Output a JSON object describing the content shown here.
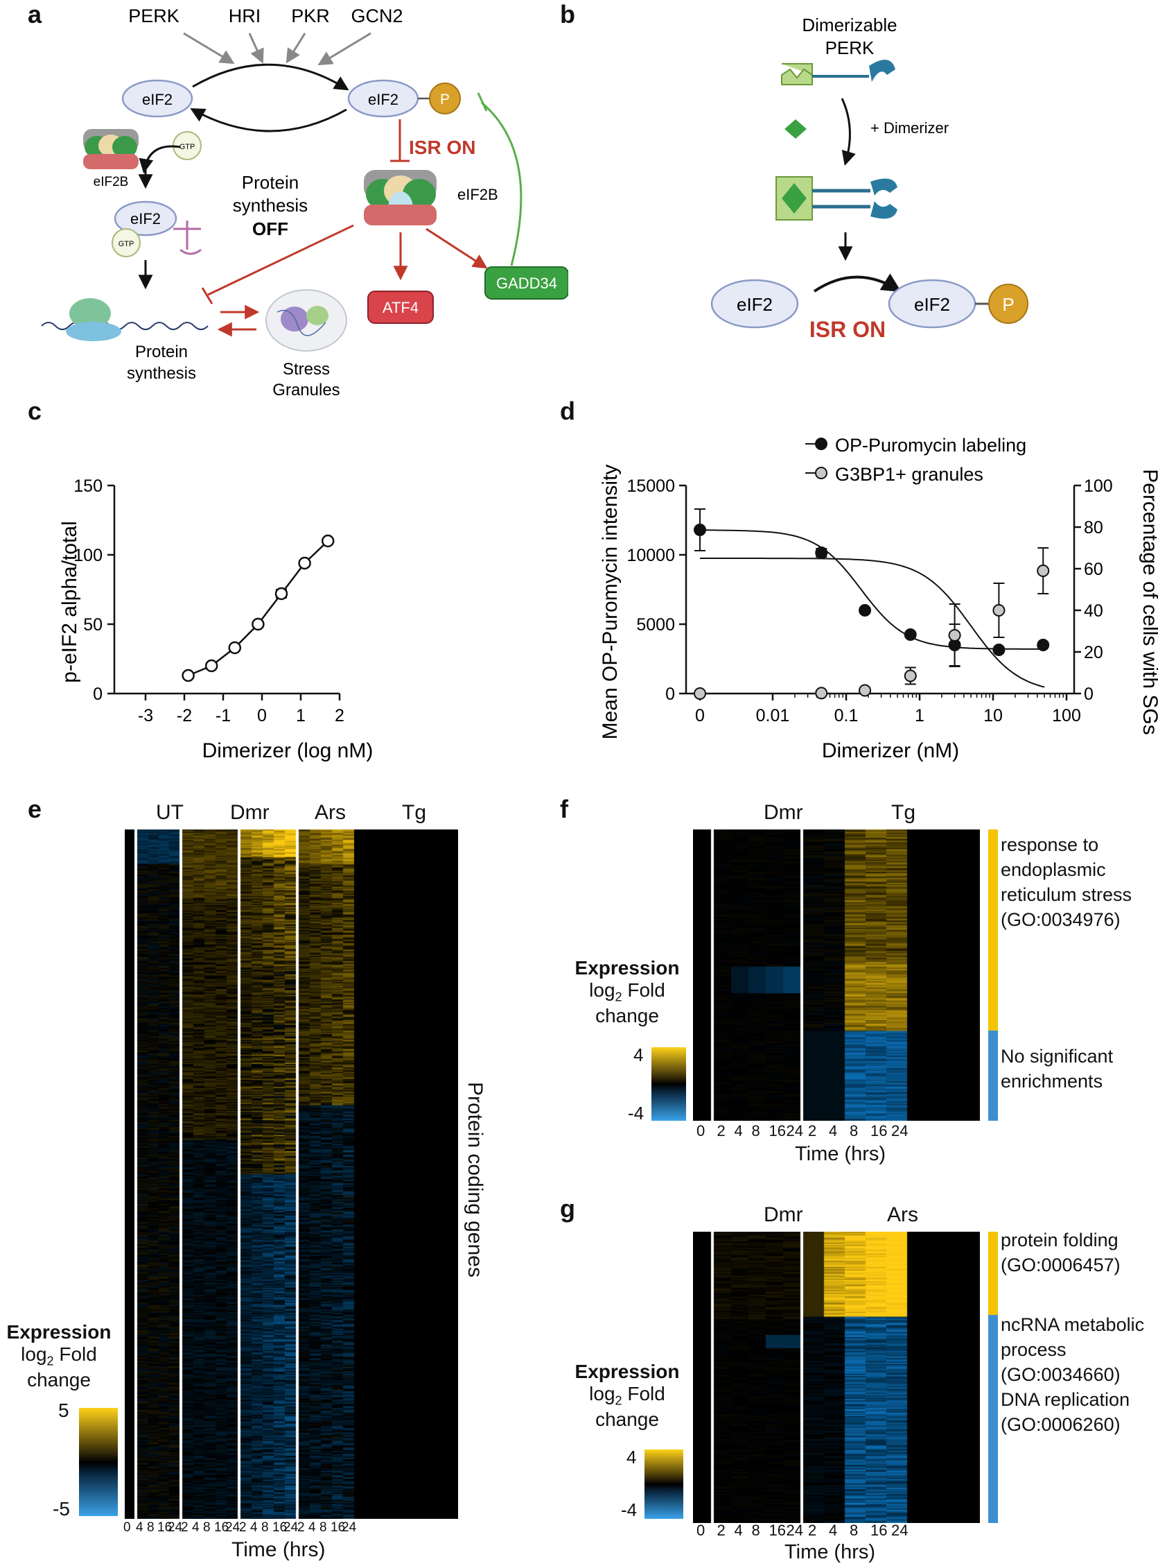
{
  "panels": {
    "a": {
      "letter": "a",
      "kinases": [
        "PERK",
        "HRI",
        "PKR",
        "GCN2"
      ],
      "eif2": "eIF2",
      "p": "P",
      "eif2b": "eIF2B",
      "gtp": "GTP",
      "isr_on": "ISR ON",
      "protein_synthesis_off": [
        "Protein",
        "synthesis",
        "OFF"
      ],
      "atf4": "ATF4",
      "gadd34": "GADD34",
      "protein_synthesis": [
        "Protein",
        "synthesis"
      ],
      "stress_granules": [
        "Stress",
        "Granules"
      ]
    },
    "b": {
      "letter": "b",
      "title": [
        "Dimerizable",
        "PERK"
      ],
      "dimerizer": "+ Dimerizer",
      "eif2": "eIF2",
      "p": "P",
      "isr_on": "ISR ON"
    },
    "c": {
      "letter": "c"
    },
    "d": {
      "letter": "d"
    },
    "e": {
      "letter": "e",
      "groups": [
        "UT",
        "Dmr",
        "Ars",
        "Tg"
      ],
      "side_label": "Protein coding genes",
      "legend_title": "Expression",
      "legend_sub1": "log",
      "legend_sub_2": "2",
      "legend_sub_rest": " Fold",
      "legend_sub2": "change",
      "legend_max": "5",
      "legend_min": "-5",
      "xlabel": "Time (hrs)",
      "ticks_first": "0",
      "ticks_group": [
        "2",
        "4",
        "8",
        "16",
        "24"
      ],
      "ticks_group_ut": [
        "4",
        "8",
        "16",
        "24"
      ]
    },
    "f": {
      "letter": "f",
      "groups": [
        "Dmr",
        "Tg"
      ],
      "legend_title": "Expression",
      "legend_sub2": "change",
      "legend_max": "4",
      "legend_min": "-4",
      "xlabel": "Time (hrs)",
      "ticks": [
        "0",
        "2",
        "4",
        "8",
        "16",
        "24",
        "2",
        "4",
        "8",
        "16",
        "24"
      ],
      "annotations": [
        {
          "text": [
            "response to",
            "endoplasmic",
            "reticulum stress",
            "(GO:0034976)"
          ],
          "color": "#f5c400"
        },
        {
          "text": [
            "No significant",
            "enrichments"
          ],
          "color": "#3d8fd1"
        }
      ]
    },
    "g": {
      "letter": "g",
      "groups": [
        "Dmr",
        "Ars"
      ],
      "legend_title": "Expression",
      "legend_sub2": "change",
      "legend_max": "4",
      "legend_min": "-4",
      "xlabel": "Time (hrs)",
      "ticks": [
        "0",
        "2",
        "4",
        "8",
        "16",
        "24",
        "2",
        "4",
        "8",
        "16",
        "24"
      ],
      "annotations": [
        {
          "text": [
            "protein folding",
            "(GO:0006457)"
          ],
          "color": "#f5c400"
        },
        {
          "text": [
            "ncRNA metabolic",
            "process",
            "(GO:0034660)",
            "DNA replication",
            "(GO:0006260)"
          ],
          "color": "#3d8fd1"
        }
      ]
    }
  },
  "chart_data": [
    {
      "panel": "c",
      "type": "line",
      "xlabel": "Dimerizer (log nM)",
      "ylabel": "p-eIF2 alpha/total",
      "xlim": [
        -3,
        2
      ],
      "ylim": [
        0,
        150
      ],
      "xticks": [
        "-3",
        "-2",
        "-1",
        "0",
        "1",
        "2"
      ],
      "yticks": [
        "0",
        "50",
        "100",
        "150"
      ],
      "x": [
        -1.9,
        -1.3,
        -0.7,
        -0.1,
        0.5,
        1.1,
        1.7
      ],
      "y": [
        13,
        20,
        33,
        50,
        72,
        94,
        110
      ],
      "err": [
        0,
        0,
        0,
        0,
        3,
        0,
        0
      ]
    },
    {
      "panel": "d",
      "type": "line",
      "xlabel": "Dimerizer (nM)",
      "ylabel": "Mean OP-Puromycin intensity",
      "y2label": "Percentage of cells with SGs",
      "xticks": [
        "0",
        "0.01",
        "0.1",
        "1",
        "10",
        "100"
      ],
      "yticks": [
        "0",
        "5000",
        "10000",
        "15000"
      ],
      "y2ticks": [
        "0",
        "20",
        "40",
        "60",
        "80",
        "100"
      ],
      "ylim": [
        0,
        15000
      ],
      "y2lim": [
        0,
        100
      ],
      "x_categories_note": "log axis with 0 at left",
      "legend_position": "top-right",
      "series": [
        {
          "name": "OP-Puromycin labeling",
          "color": "#111111",
          "x": [
            0,
            0.046,
            0.18,
            0.75,
            3,
            12,
            48
          ],
          "y": [
            11800,
            10150,
            6000,
            4250,
            3500,
            3150,
            3500
          ],
          "err": [
            1500,
            300,
            0,
            0,
            1500,
            0,
            0
          ],
          "axis": "left"
        },
        {
          "name": "G3BP1+ granules",
          "color": "#c8c8c8",
          "x": [
            0,
            0.046,
            0.18,
            0.75,
            3,
            12,
            48
          ],
          "y": [
            0,
            0.2,
            1.5,
            8.5,
            28,
            40,
            59
          ],
          "err": [
            0,
            0,
            0,
            4,
            15,
            13,
            11
          ],
          "axis": "right"
        }
      ]
    }
  ]
}
